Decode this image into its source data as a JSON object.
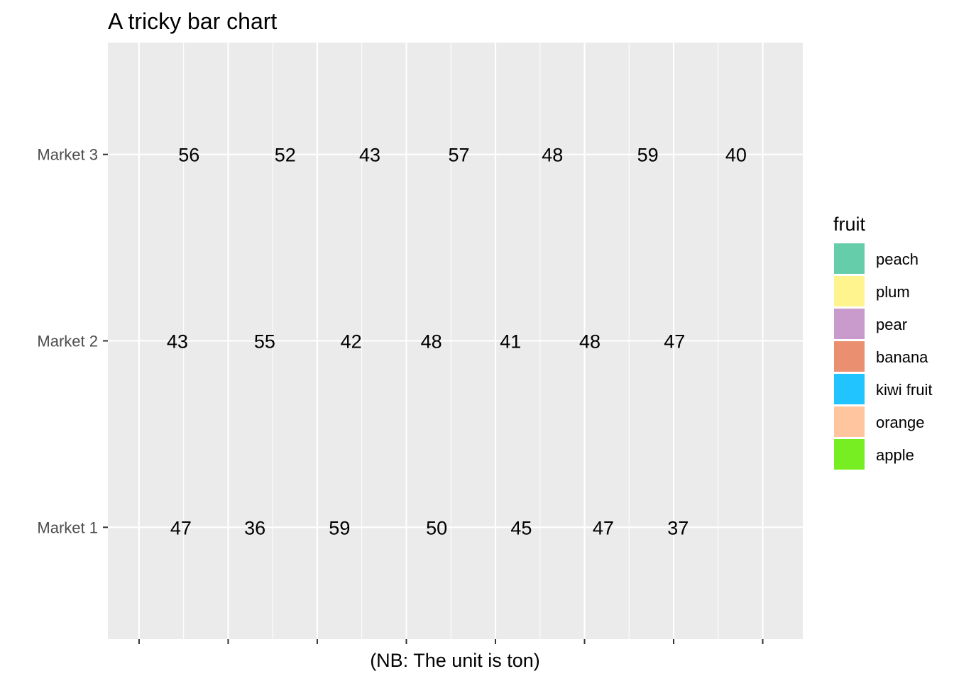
{
  "chart_data": {
    "type": "bar",
    "orientation": "horizontal",
    "stacked": true,
    "title": "A tricky bar chart",
    "xlabel": "(NB: The unit is ton)",
    "ylabel": "",
    "categories": [
      "Market 1",
      "Market 2",
      "Market 3"
    ],
    "series": [
      {
        "name": "apple",
        "color": "#77EE22",
        "values": [
          47,
          43,
          56
        ]
      },
      {
        "name": "orange",
        "color": "#FFC59F",
        "values": [
          36,
          55,
          52
        ]
      },
      {
        "name": "kiwi fruit",
        "color": "#22C4FF",
        "values": [
          59,
          42,
          43
        ]
      },
      {
        "name": "banana",
        "color": "#EA8F6F",
        "values": [
          50,
          48,
          57
        ]
      },
      {
        "name": "pear",
        "color": "#C99ACC",
        "values": [
          45,
          41,
          48
        ]
      },
      {
        "name": "plum",
        "color": "#FFF48E",
        "values": [
          47,
          48,
          59
        ]
      },
      {
        "name": "peach",
        "color": "#66CDAA",
        "values": [
          37,
          47,
          40
        ]
      }
    ],
    "xlim": [
      -17.5,
      372.5
    ],
    "x_ticks_labels_shown": false,
    "data_labels": true,
    "grid": true,
    "legend": {
      "title": "fruit",
      "position": "right",
      "order": [
        "peach",
        "plum",
        "pear",
        "banana",
        "kiwi fruit",
        "orange",
        "apple"
      ]
    },
    "panel_background": "#EBEBEB",
    "gridline_color": "#FFFFFF"
  }
}
